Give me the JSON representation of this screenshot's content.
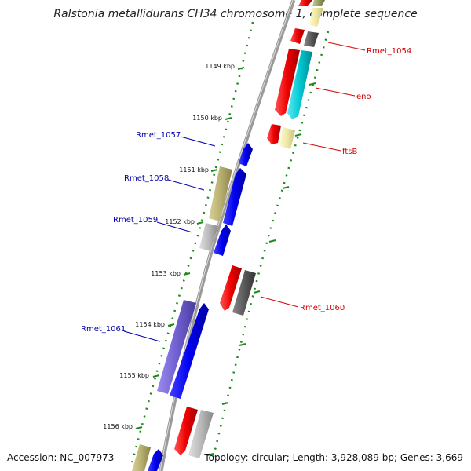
{
  "title": "Ralstonia metallidurans CH34 chromosome 1, complete sequence",
  "footer": {
    "accession": "Accession: NC_007973",
    "summary": "Topology: circular; Length: 3,928,089 bp; Genes: 3,669"
  },
  "colors": {
    "backbone": "#8a8a8a",
    "gc_dots": "#1a8a1a",
    "label_red": "#d40000",
    "label_blue": "#0000aa",
    "red": "#ee0000",
    "blue": "#0000ee",
    "cyan": "#00c8d2",
    "dark_gray": "#5a5a5a",
    "light_gray": "#b9b9b9",
    "khaki": "#b8b070",
    "pale_yellow": "#ece8a4",
    "violet": "#7060d0",
    "olive": "#98a060"
  },
  "kbp_ticks": [
    "1149 kbp",
    "1150 kbp",
    "1151 kbp",
    "1152 kbp",
    "1153 kbp",
    "1154 kbp",
    "1155 kbp",
    "1156 kbp"
  ],
  "gene_labels": {
    "right": [
      "Rmet_1054",
      "eno",
      "ftsB",
      "Rmet_1060"
    ],
    "left": [
      "Rmet_1057",
      "Rmet_1058",
      "Rmet_1059",
      "Rmet_1061"
    ]
  }
}
